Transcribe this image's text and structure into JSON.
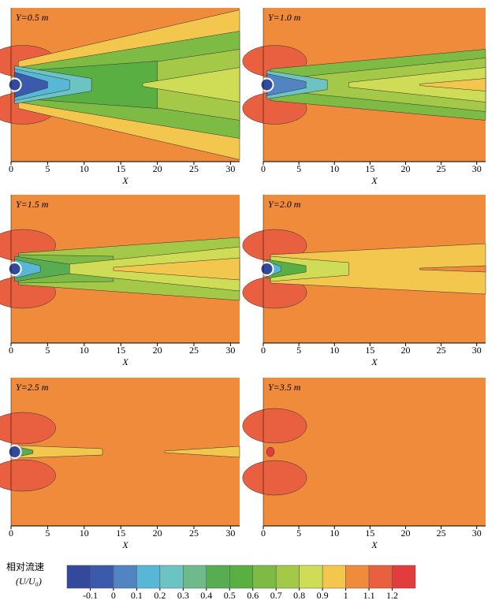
{
  "chart_data": [
    {
      "type": "contour",
      "title": "Y=0.5 m",
      "xlabel": "X",
      "xlim": [
        0,
        31.25
      ],
      "xticks": [
        0,
        5,
        10,
        15,
        20,
        25,
        30
      ]
    },
    {
      "type": "contour",
      "title": "Y=1.0 m",
      "xlabel": "X",
      "xlim": [
        0,
        31.25
      ],
      "xticks": [
        0,
        5,
        10,
        15,
        20,
        25,
        30
      ]
    },
    {
      "type": "contour",
      "title": "Y=1.5 m",
      "xlabel": "X",
      "xlim": [
        0,
        31.25
      ],
      "xticks": [
        0,
        5,
        10,
        15,
        20,
        25,
        30
      ]
    },
    {
      "type": "contour",
      "title": "Y=2.0 m",
      "xlabel": "X",
      "xlim": [
        0,
        31.25
      ],
      "xticks": [
        0,
        5,
        10,
        15,
        20,
        25,
        30
      ]
    },
    {
      "type": "contour",
      "title": "Y=2.5 m",
      "xlabel": "X",
      "xlim": [
        0,
        31.25
      ],
      "xticks": [
        0,
        5,
        10,
        15,
        20,
        25,
        30
      ]
    },
    {
      "type": "contour",
      "title": "Y=3.5 m",
      "xlabel": "X",
      "xlim": [
        0,
        31.25
      ],
      "xticks": [
        0,
        5,
        10,
        15,
        20,
        25,
        30
      ]
    }
  ],
  "colorbar": {
    "label": "相对流速",
    "unit": "(U/U₀)",
    "ticks": [
      -0.1,
      0,
      0.1,
      0.2,
      0.3,
      0.4,
      0.5,
      0.6,
      0.7,
      0.8,
      0.9,
      1.0,
      1.1,
      1.2
    ],
    "colors": [
      "#34499c",
      "#3b5aab",
      "#5283c2",
      "#58b6d7",
      "#6cc4c2",
      "#6fba8c",
      "#58ad52",
      "#5aaf43",
      "#7dbb45",
      "#a4c847",
      "#cfdc55",
      "#f3c74d",
      "#ef8b3a",
      "#e8603f",
      "#e23c3c"
    ]
  }
}
